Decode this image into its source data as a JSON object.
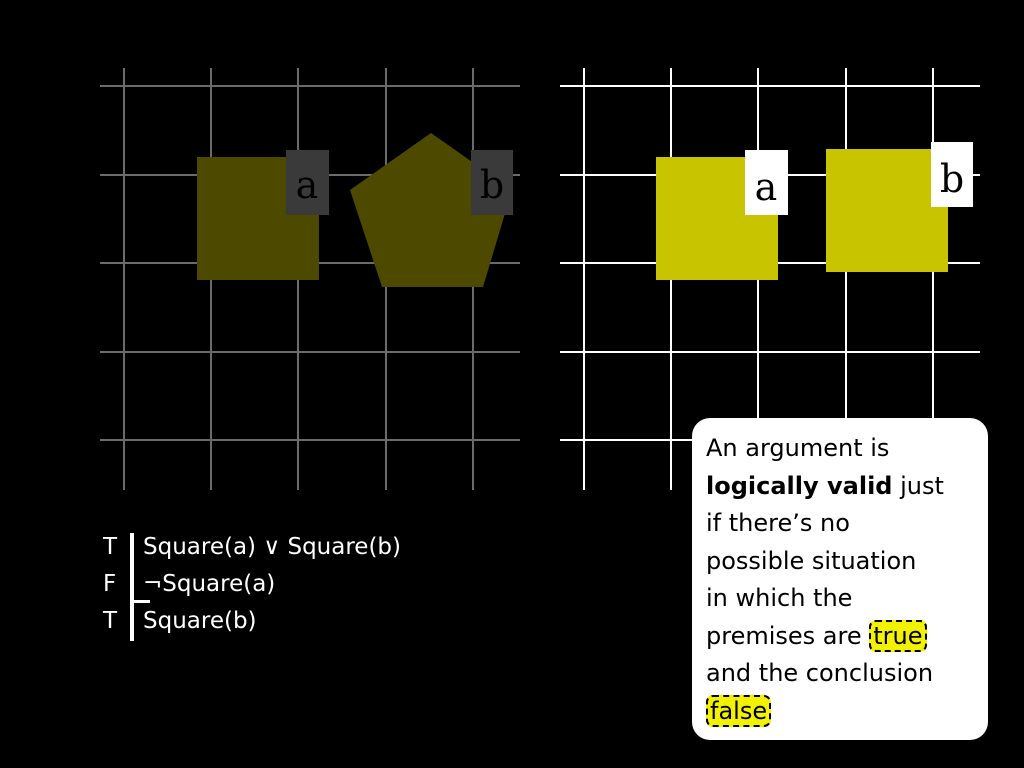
{
  "worlds": {
    "left": {
      "label_a": "a",
      "label_b": "b",
      "shape_a": "square",
      "shape_b": "pentagon",
      "state": "dimmed"
    },
    "right": {
      "label_a": "a",
      "label_b": "b",
      "shape_a": "square",
      "shape_b": "square",
      "state": "highlighted"
    }
  },
  "colors": {
    "dim_shape": "#4d4a00",
    "bright_shape": "#c8c400",
    "dim_grid": "#6b6b6b",
    "bright_grid": "#ffffff",
    "highlight": "#f2f200"
  },
  "truth_table": {
    "rows": [
      {
        "value": "T",
        "formula": "Square(a) ∨ Square(b)"
      },
      {
        "value": "F",
        "formula": "¬Square(a)"
      },
      {
        "value": "T",
        "formula": "Square(b)"
      }
    ]
  },
  "note": {
    "line1": "An argument is",
    "line2_bold": "logically valid",
    "line2_rest": " just",
    "line3": "if there’s no",
    "line4": "possible situation",
    "line5": "in which the",
    "line6_pre": "premises are ",
    "highlight_true": "true",
    "line7": "and the conclusion",
    "highlight_false": "false"
  }
}
